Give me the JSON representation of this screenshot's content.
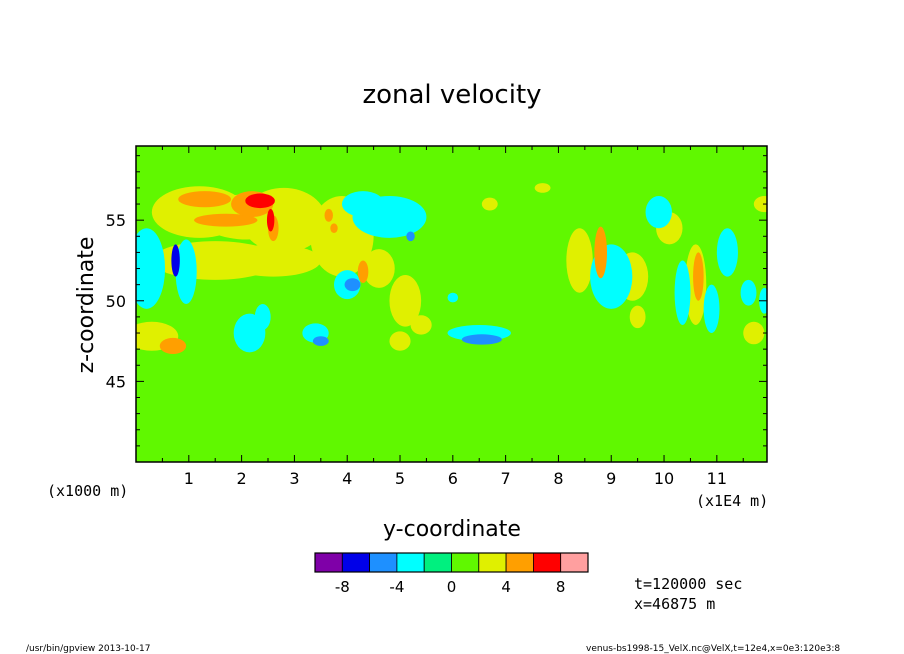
{
  "chart_data": {
    "type": "heatmap",
    "title": "zonal velocity",
    "xlabel": "y-coordinate",
    "ylabel": "z-coordinate",
    "x_ticks": [
      1,
      2,
      3,
      4,
      5,
      6,
      7,
      8,
      9,
      10,
      11
    ],
    "x_tick_labels": [
      "1",
      "2",
      "3",
      "4",
      "5",
      "6",
      "7",
      "8",
      "9",
      "10",
      "11"
    ],
    "x_unit_label": "(x1E4 m)",
    "y_unit_label": "(x1000 m)",
    "xlim": [
      0,
      11.95
    ],
    "ylim": [
      40,
      59.6
    ],
    "y_ticks": [
      45,
      50,
      55
    ],
    "y_tick_labels": [
      "45",
      "50",
      "55"
    ],
    "background_level": 0,
    "levels": [
      -10,
      -8,
      -6,
      -4,
      -2,
      0,
      2,
      4,
      6,
      8,
      10
    ],
    "colors": [
      "#7f00a8",
      "#0000e8",
      "#1e90ff",
      "#00ffff",
      "#00f07f",
      "#60f800",
      "#e0f000",
      "#ff9f00",
      "#ff0000",
      "#ff9f9f"
    ],
    "colorbar_labels": [
      "-8",
      "-4",
      "0",
      "4",
      "8"
    ],
    "annotations": [
      "t=120000 sec",
      "x=46875 m"
    ],
    "footer_left": "/usr/bin/gpview  2013-10-17",
    "footer_right": "venus-bs1998-15_VelX.nc@VelX,t=12e4,x=0e3:120e3:8",
    "features": [
      {
        "x": 1.2,
        "y": 55.5,
        "rx": 0.9,
        "ry": 1.6,
        "value": 3
      },
      {
        "x": 2.1,
        "y": 55.2,
        "rx": 0.9,
        "ry": 1.4,
        "value": 3
      },
      {
        "x": 2.8,
        "y": 55.0,
        "rx": 0.8,
        "ry": 2.0,
        "value": 3
      },
      {
        "x": 3.9,
        "y": 54.0,
        "rx": 0.6,
        "ry": 2.5,
        "value": 3
      },
      {
        "x": 1.5,
        "y": 52.5,
        "rx": 1.2,
        "ry": 1.2,
        "value": 3
      },
      {
        "x": 2.6,
        "y": 52.5,
        "rx": 0.9,
        "ry": 1.0,
        "value": 3
      },
      {
        "x": 4.6,
        "y": 52.0,
        "rx": 0.3,
        "ry": 1.2,
        "value": 3
      },
      {
        "x": 5.1,
        "y": 50.0,
        "rx": 0.3,
        "ry": 1.6,
        "value": 3
      },
      {
        "x": 5.4,
        "y": 48.5,
        "rx": 0.2,
        "ry": 0.6,
        "value": 3
      },
      {
        "x": 5.0,
        "y": 47.5,
        "rx": 0.2,
        "ry": 0.6,
        "value": 3
      },
      {
        "x": 0.3,
        "y": 47.8,
        "rx": 0.5,
        "ry": 0.9,
        "value": 3
      },
      {
        "x": 1.3,
        "y": 56.3,
        "rx": 0.5,
        "ry": 0.5,
        "value": 5
      },
      {
        "x": 1.7,
        "y": 55.0,
        "rx": 0.6,
        "ry": 0.4,
        "value": 5
      },
      {
        "x": 2.2,
        "y": 56.0,
        "rx": 0.4,
        "ry": 0.8,
        "value": 5
      },
      {
        "x": 2.6,
        "y": 54.5,
        "rx": 0.1,
        "ry": 0.8,
        "value": 5
      },
      {
        "x": 0.7,
        "y": 47.2,
        "rx": 0.25,
        "ry": 0.5,
        "value": 5
      },
      {
        "x": 2.35,
        "y": 56.2,
        "rx": 0.28,
        "ry": 0.45,
        "value": 7
      },
      {
        "x": 2.55,
        "y": 55.0,
        "rx": 0.07,
        "ry": 0.7,
        "value": 7
      },
      {
        "x": 3.65,
        "y": 55.3,
        "rx": 0.08,
        "ry": 0.4,
        "value": 5
      },
      {
        "x": 3.75,
        "y": 54.5,
        "rx": 0.07,
        "ry": 0.3,
        "value": 5
      },
      {
        "x": 4.3,
        "y": 51.8,
        "rx": 0.1,
        "ry": 0.7,
        "value": 5
      },
      {
        "x": 0.2,
        "y": 52.0,
        "rx": 0.35,
        "ry": 2.5,
        "value": -3
      },
      {
        "x": 0.95,
        "y": 51.8,
        "rx": 0.2,
        "ry": 2.0,
        "value": -3
      },
      {
        "x": 0.75,
        "y": 52.5,
        "rx": 0.08,
        "ry": 1.0,
        "value": -7
      },
      {
        "x": 2.15,
        "y": 48.0,
        "rx": 0.3,
        "ry": 1.2,
        "value": -3
      },
      {
        "x": 2.4,
        "y": 49.0,
        "rx": 0.15,
        "ry": 0.8,
        "value": -3
      },
      {
        "x": 3.4,
        "y": 48.0,
        "rx": 0.25,
        "ry": 0.6,
        "value": -3
      },
      {
        "x": 3.5,
        "y": 47.5,
        "rx": 0.15,
        "ry": 0.3,
        "value": -5
      },
      {
        "x": 4.0,
        "y": 51.0,
        "rx": 0.25,
        "ry": 0.9,
        "value": -3
      },
      {
        "x": 4.1,
        "y": 51.0,
        "rx": 0.15,
        "ry": 0.4,
        "value": -5
      },
      {
        "x": 4.8,
        "y": 55.2,
        "rx": 0.7,
        "ry": 1.3,
        "value": -3
      },
      {
        "x": 4.3,
        "y": 56.0,
        "rx": 0.4,
        "ry": 0.8,
        "value": -3
      },
      {
        "x": 5.2,
        "y": 54.0,
        "rx": 0.08,
        "ry": 0.3,
        "value": -5
      },
      {
        "x": 6.5,
        "y": 48.0,
        "rx": 0.6,
        "ry": 0.5,
        "value": -3
      },
      {
        "x": 6.55,
        "y": 47.6,
        "rx": 0.38,
        "ry": 0.32,
        "value": -5
      },
      {
        "x": 6.0,
        "y": 50.2,
        "rx": 0.1,
        "ry": 0.3,
        "value": -3
      },
      {
        "x": 8.4,
        "y": 52.5,
        "rx": 0.25,
        "ry": 2.0,
        "value": 3
      },
      {
        "x": 8.8,
        "y": 53.0,
        "rx": 0.12,
        "ry": 1.6,
        "value": 5
      },
      {
        "x": 9.4,
        "y": 51.5,
        "rx": 0.3,
        "ry": 1.5,
        "value": 3
      },
      {
        "x": 9.5,
        "y": 49.0,
        "rx": 0.15,
        "ry": 0.7,
        "value": 3
      },
      {
        "x": 10.1,
        "y": 54.5,
        "rx": 0.25,
        "ry": 1.0,
        "value": 3
      },
      {
        "x": 10.6,
        "y": 51.0,
        "rx": 0.2,
        "ry": 2.5,
        "value": 3
      },
      {
        "x": 10.65,
        "y": 51.5,
        "rx": 0.1,
        "ry": 1.5,
        "value": 5
      },
      {
        "x": 11.7,
        "y": 48.0,
        "rx": 0.2,
        "ry": 0.7,
        "value": 3
      },
      {
        "x": 11.9,
        "y": 56.0,
        "rx": 0.2,
        "ry": 0.5,
        "value": 3
      },
      {
        "x": 6.7,
        "y": 56.0,
        "rx": 0.15,
        "ry": 0.4,
        "value": 3
      },
      {
        "x": 7.7,
        "y": 57.0,
        "rx": 0.15,
        "ry": 0.3,
        "value": 3
      },
      {
        "x": 9.0,
        "y": 51.5,
        "rx": 0.4,
        "ry": 2.0,
        "value": -3
      },
      {
        "x": 9.9,
        "y": 55.5,
        "rx": 0.25,
        "ry": 1.0,
        "value": -3
      },
      {
        "x": 10.35,
        "y": 50.5,
        "rx": 0.15,
        "ry": 2.0,
        "value": -3
      },
      {
        "x": 10.9,
        "y": 49.5,
        "rx": 0.15,
        "ry": 1.5,
        "value": -3
      },
      {
        "x": 11.2,
        "y": 53.0,
        "rx": 0.2,
        "ry": 1.5,
        "value": -3
      },
      {
        "x": 11.6,
        "y": 50.5,
        "rx": 0.15,
        "ry": 0.8,
        "value": -3
      },
      {
        "x": 11.9,
        "y": 50.0,
        "rx": 0.1,
        "ry": 0.8,
        "value": -3
      }
    ]
  }
}
